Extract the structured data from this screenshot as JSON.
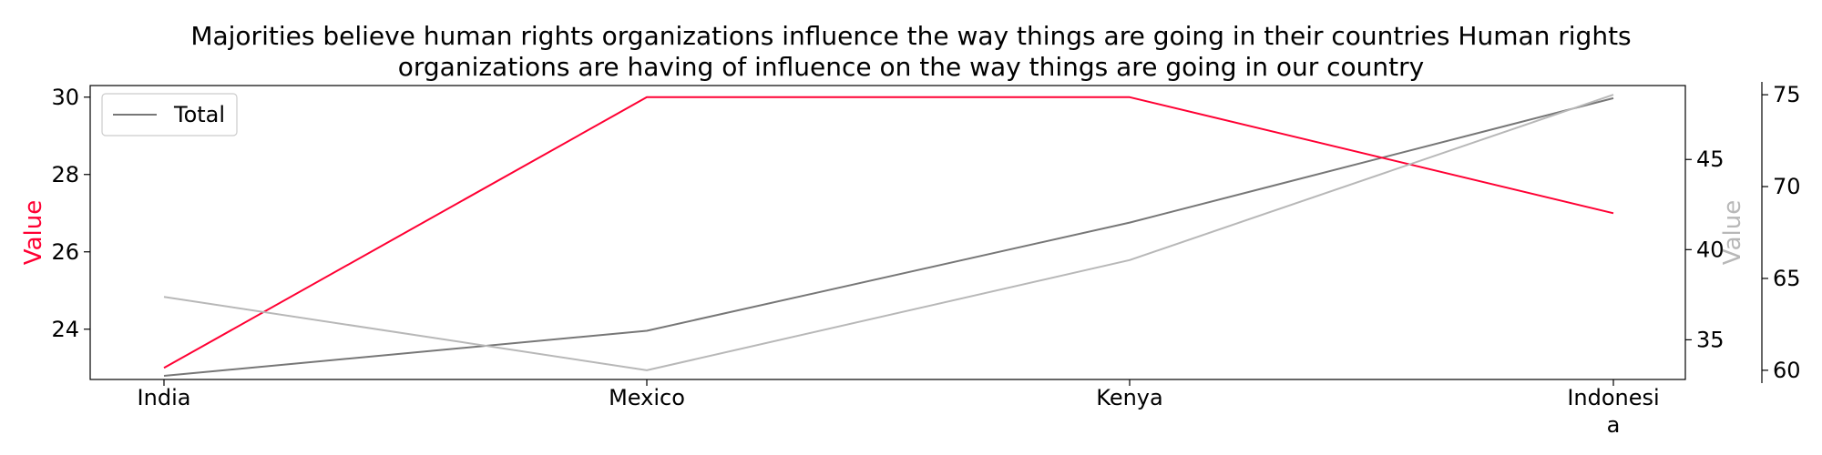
{
  "chart_data": {
    "type": "line",
    "title_line1": "Majorities believe human rights organizations influence the way things are going in their countries Human rights",
    "title_line2": "organizations are having of influence on the way things are going in our country",
    "categories": [
      "India",
      "Mexico",
      "Kenya",
      "Indonesia"
    ],
    "category_label_lines": [
      [
        "India"
      ],
      [
        "Mexico"
      ],
      [
        "Kenya"
      ],
      [
        "Indonesi",
        "a"
      ]
    ],
    "left_axis": {
      "label": "Value",
      "color": "#ff0033",
      "ylim": [
        22.7,
        30.3
      ],
      "ticks": [
        24,
        26,
        28,
        30
      ]
    },
    "right_axis_inner": {
      "ylim": [
        32.8,
        49.1
      ],
      "ticks": [
        35,
        40,
        45
      ]
    },
    "right_axis_outer": {
      "label": "Value",
      "color": "#b8b8b8",
      "ylim": [
        59.5,
        75.5
      ],
      "ticks": [
        60,
        65,
        70,
        75
      ]
    },
    "series": [
      {
        "name": "Total",
        "axis": "right_inner",
        "color": "#777777",
        "values": [
          33,
          35.5,
          41.5,
          48.4
        ],
        "in_legend": true
      },
      {
        "axis": "left",
        "color": "#ff0033",
        "values": [
          23,
          30,
          30,
          27
        ],
        "in_legend": false
      },
      {
        "axis": "right_outer",
        "color": "#b8b8b8",
        "values": [
          64,
          60,
          66,
          75
        ],
        "in_legend": false
      }
    ],
    "legend_position": "top-left",
    "grid": false
  }
}
